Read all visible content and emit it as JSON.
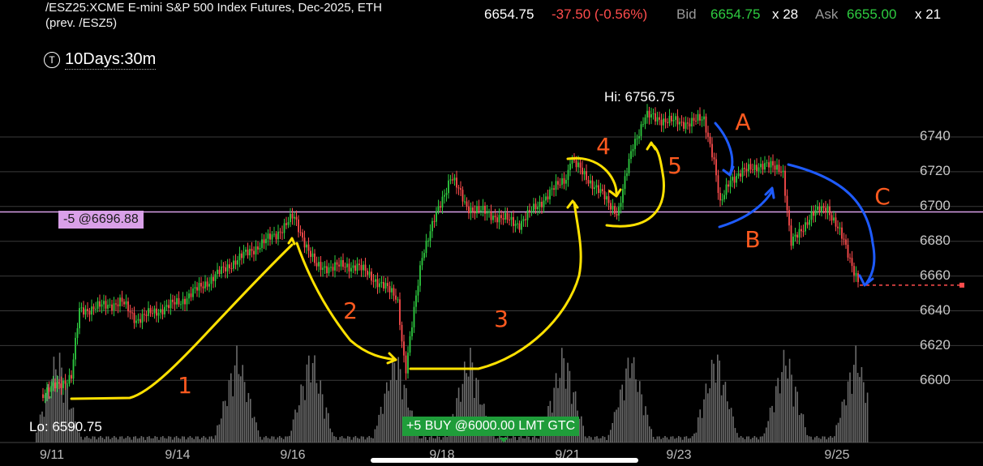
{
  "header": {
    "title_line1": "/ESZ25:XCME E-mini S&P 500 Index Futures, Dec-2025, ETH",
    "title_line2": "(prev. /ESZ5)",
    "last": "6654.75",
    "change": "-37.50 (-0.56%)",
    "bid_label": "Bid",
    "bid": "6654.75",
    "bid_size": "x 28",
    "ask_label": "Ask",
    "ask": "6655.00",
    "ask_size": "x 21"
  },
  "interval": {
    "icon": "clock-icon",
    "label": "10Days:30m"
  },
  "orders": {
    "sell_order": "-5 @6696.88",
    "buy_order": "+5 BUY @6000.00 LMT GTC"
  },
  "hi_label": "Hi: 6756.75",
  "lo_label": "Lo: 6590.75",
  "annotations": [
    "A",
    "B",
    "C",
    "1",
    "2",
    "3",
    "4",
    "5"
  ],
  "colors": {
    "up": "#2ecc40",
    "down": "#ff4d4d",
    "sell_line": "#d9a0e8",
    "yellow": "#ffe100",
    "blue": "#1e5bff",
    "orange": "#ff5a1f"
  },
  "chart_data": {
    "type": "candlestick",
    "price_ticks": [
      "6740",
      "6720",
      "6700",
      "6680",
      "6660",
      "6640",
      "6620",
      "6600"
    ],
    "date_ticks": [
      "9/11",
      "9/14",
      "9/16",
      "9/18",
      "9/21",
      "9/23",
      "9/25"
    ],
    "high": 6756.75,
    "low": 6590.75,
    "last": 6654.75,
    "sell_order_price": 6696.88,
    "series": [
      {
        "values": [
          {
            "date": "9/11",
            "price": 6592
          },
          {
            "date": "9/11",
            "price": 6600
          },
          {
            "date": "9/11",
            "price": 6640
          },
          {
            "date": "9/14",
            "price": 6643
          },
          {
            "date": "9/14",
            "price": 6645
          },
          {
            "date": "9/16",
            "price": 6670
          },
          {
            "date": "9/16",
            "price": 6693
          },
          {
            "date": "9/16",
            "price": 6667
          },
          {
            "date": "9/18",
            "price": 6660
          },
          {
            "date": "9/18",
            "price": 6604
          },
          {
            "date": "9/18",
            "price": 6672
          },
          {
            "date": "9/18",
            "price": 6715
          },
          {
            "date": "9/18",
            "price": 6700
          },
          {
            "date": "9/21",
            "price": 6690
          },
          {
            "date": "9/21",
            "price": 6705
          },
          {
            "date": "9/21",
            "price": 6728
          },
          {
            "date": "9/21",
            "price": 6712
          },
          {
            "date": "9/21",
            "price": 6698
          },
          {
            "date": "9/23",
            "price": 6740
          },
          {
            "date": "9/23",
            "price": 6756.75
          },
          {
            "date": "9/23",
            "price": 6748
          },
          {
            "date": "9/23",
            "price": 6700
          },
          {
            "date": "9/23",
            "price": 6720
          },
          {
            "date": "9/23",
            "price": 6722
          },
          {
            "date": "9/25",
            "price": 6680
          },
          {
            "date": "9/25",
            "price": 6700
          },
          {
            "date": "9/25",
            "price": 6670
          },
          {
            "date": "9/25",
            "price": 6654.75
          }
        ]
      }
    ]
  }
}
